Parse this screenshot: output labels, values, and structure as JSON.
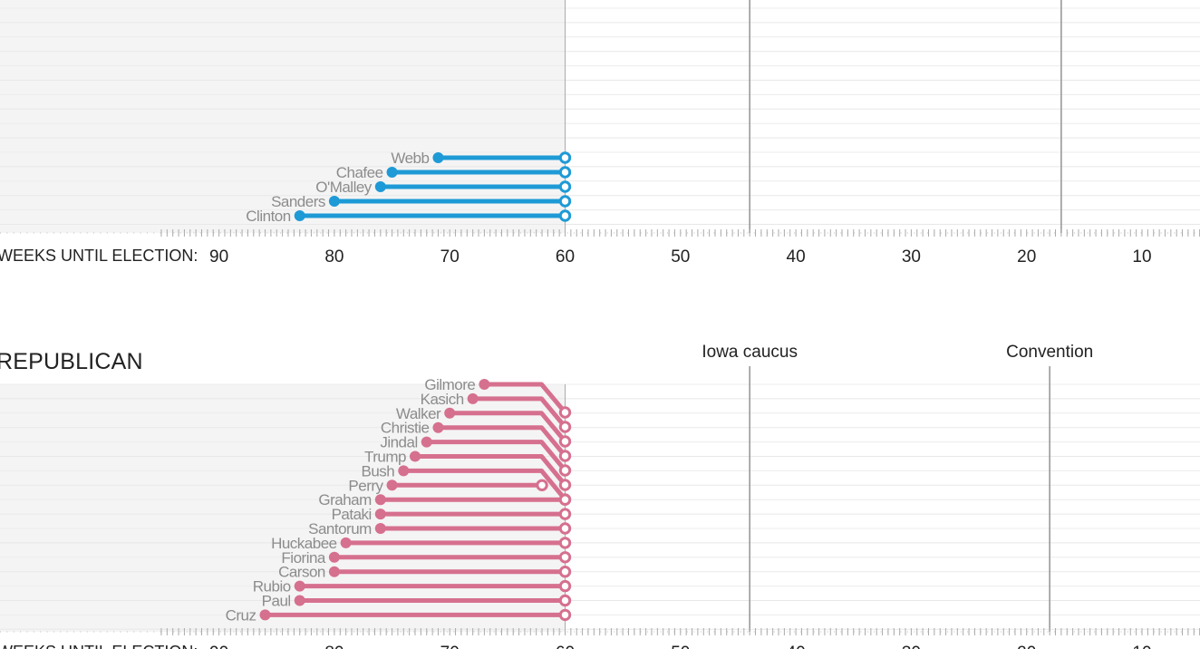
{
  "chart_data": {
    "type": "line",
    "x_axis_label": "WEEKS UNTIL ELECTION:",
    "x_ticks": [
      90,
      80,
      70,
      60,
      50,
      40,
      30,
      20,
      10
    ],
    "x_range": [
      93,
      5
    ],
    "current_week": 60,
    "colors": {
      "democratic": "#1e9ad6",
      "republican": "#d6708f",
      "gray_zone": "#f4f4f4",
      "event_line": "#999999"
    },
    "panels": [
      {
        "party": "",
        "events": [
          {
            "name": "",
            "week": 44
          },
          {
            "name": "",
            "week": 17
          }
        ],
        "candidates": [
          {
            "name": "Webb",
            "entry_week": 71,
            "end_week": 60
          },
          {
            "name": "Chafee",
            "entry_week": 75,
            "end_week": 60
          },
          {
            "name": "O'Malley",
            "entry_week": 76,
            "end_week": 60
          },
          {
            "name": "Sanders",
            "entry_week": 80,
            "end_week": 60
          },
          {
            "name": "Clinton",
            "entry_week": 83,
            "end_week": 60
          }
        ]
      },
      {
        "party": "REPUBLICAN",
        "events": [
          {
            "name": "Iowa caucus",
            "week": 44
          },
          {
            "name": "Convention",
            "week": 18
          }
        ],
        "candidates": [
          {
            "name": "Gilmore",
            "entry_week": 67,
            "end_week": 60
          },
          {
            "name": "Kasich",
            "entry_week": 68,
            "end_week": 60
          },
          {
            "name": "Walker",
            "entry_week": 70,
            "end_week": 60
          },
          {
            "name": "Christie",
            "entry_week": 71,
            "end_week": 60
          },
          {
            "name": "Jindal",
            "entry_week": 72,
            "end_week": 60
          },
          {
            "name": "Trump",
            "entry_week": 73,
            "end_week": 60
          },
          {
            "name": "Bush",
            "entry_week": 74,
            "end_week": 60
          },
          {
            "name": "Perry",
            "entry_week": 75,
            "end_week": 62
          },
          {
            "name": "Graham",
            "entry_week": 76,
            "end_week": 60
          },
          {
            "name": "Pataki",
            "entry_week": 76,
            "end_week": 60
          },
          {
            "name": "Santorum",
            "entry_week": 76,
            "end_week": 60
          },
          {
            "name": "Huckabee",
            "entry_week": 79,
            "end_week": 60
          },
          {
            "name": "Fiorina",
            "entry_week": 80,
            "end_week": 60
          },
          {
            "name": "Carson",
            "entry_week": 80,
            "end_week": 60
          },
          {
            "name": "Rubio",
            "entry_week": 83,
            "end_week": 60
          },
          {
            "name": "Paul",
            "entry_week": 83,
            "end_week": 60
          },
          {
            "name": "Cruz",
            "entry_week": 86,
            "end_week": 60
          }
        ]
      }
    ]
  }
}
